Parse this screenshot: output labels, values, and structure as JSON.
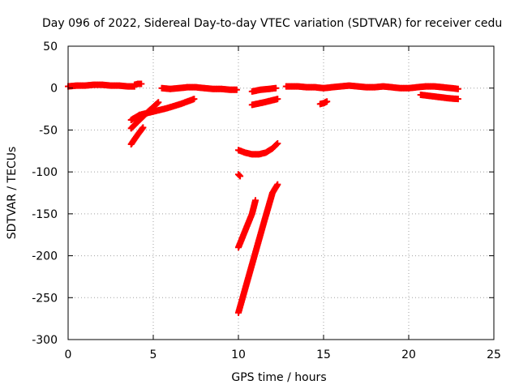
{
  "chart_data": {
    "type": "scatter",
    "title": "Day 096 of 2022, Sidereal Day-to-day VTEC variation (SDTVAR) for receiver cedu",
    "xlabel": "GPS time / hours",
    "ylabel": "SDTVAR / TECUs",
    "xlim": [
      0,
      25
    ],
    "ylim": [
      -300,
      50
    ],
    "xticks": [
      "0",
      "5",
      "10",
      "15",
      "20",
      "25"
    ],
    "yticks": [
      "50",
      "0",
      "-50",
      "-100",
      "-150",
      "-200",
      "-250",
      "-300"
    ],
    "grid": true,
    "legend": "none",
    "marker": "plus",
    "color": "#ff0000",
    "segments": [
      {
        "x": [
          0.0,
          0.5,
          1.0,
          1.5,
          2.0,
          2.5,
          3.0,
          3.5,
          3.9
        ],
        "y": [
          2,
          3,
          3,
          4,
          4,
          3,
          3,
          2,
          2
        ]
      },
      {
        "x": [
          3.9,
          4.1,
          4.3
        ],
        "y": [
          4,
          5,
          5
        ]
      },
      {
        "x": [
          5.5,
          6.0,
          6.5,
          7.0,
          7.5,
          8.0,
          8.5,
          9.0,
          9.5,
          9.9
        ],
        "y": [
          0,
          -1,
          0,
          1,
          1,
          0,
          -1,
          -1,
          -2,
          -2
        ]
      },
      {
        "x": [
          10.8,
          11.3,
          11.8,
          12.2
        ],
        "y": [
          -4,
          -2,
          -1,
          0
        ]
      },
      {
        "x": [
          12.8,
          13.5,
          14.0,
          14.5,
          15.0,
          15.5,
          16.0,
          16.5,
          17.0,
          17.5,
          18.0,
          18.5,
          19.0,
          19.5,
          20.0,
          20.5,
          21.0,
          21.5,
          22.0,
          22.5,
          22.9
        ],
        "y": [
          2,
          2,
          1,
          1,
          0,
          1,
          2,
          3,
          2,
          1,
          1,
          2,
          1,
          0,
          0,
          1,
          2,
          2,
          1,
          0,
          -1
        ]
      },
      {
        "x": [
          3.7,
          4.2,
          5.0,
          5.8,
          6.6,
          7.4
        ],
        "y": [
          -38,
          -32,
          -28,
          -24,
          -19,
          -13
        ]
      },
      {
        "x": [
          3.7,
          4.2,
          4.7,
          5.3
        ],
        "y": [
          -48,
          -38,
          -28,
          -17
        ]
      },
      {
        "x": [
          3.7,
          4.0,
          4.4
        ],
        "y": [
          -67,
          -58,
          -47
        ]
      },
      {
        "x": [
          10.8,
          11.5,
          12.3
        ],
        "y": [
          -20,
          -17,
          -13
        ]
      },
      {
        "x": [
          14.8,
          15.0,
          15.2
        ],
        "y": [
          -19,
          -18,
          -16
        ]
      },
      {
        "x": [
          20.7,
          21.5,
          22.3,
          22.9
        ],
        "y": [
          -8,
          -10,
          -12,
          -13
        ]
      },
      {
        "x": [
          10.0,
          10.4,
          10.8,
          11.2,
          11.6,
          12.0,
          12.3
        ],
        "y": [
          -74,
          -77,
          -79,
          -79,
          -77,
          -72,
          -66
        ]
      },
      {
        "x": [
          10.0,
          10.1
        ],
        "y": [
          -103,
          -105
        ]
      },
      {
        "x": [
          10.0,
          10.4,
          10.8,
          11.0
        ],
        "y": [
          -190,
          -170,
          -150,
          -134
        ]
      },
      {
        "x": [
          10.0,
          10.5,
          11.0,
          11.5,
          12.0,
          12.3
        ],
        "y": [
          -268,
          -232,
          -196,
          -160,
          -125,
          -115
        ]
      }
    ]
  }
}
